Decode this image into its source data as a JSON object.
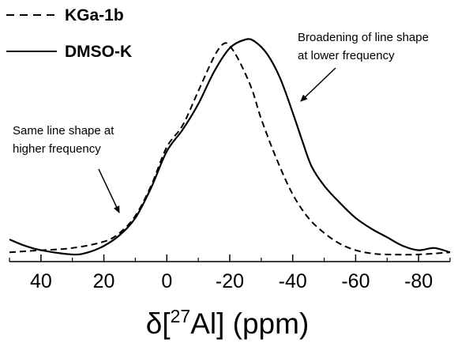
{
  "chart_data": {
    "type": "line",
    "xlabel": {
      "prefix": "δ[",
      "sup": "27",
      "element": "Al] (ppm)"
    },
    "ylabel": "",
    "xlim": [
      50,
      -90
    ],
    "x_reversed": true,
    "x_ticks": [
      40,
      20,
      0,
      -20,
      -40,
      -60,
      -80
    ],
    "x_tick_labels": [
      "40",
      "20",
      "0",
      "-20",
      "-40",
      "-60",
      "-80"
    ],
    "y_ticks_shown": false,
    "legend": {
      "position": "top-left"
    },
    "series": [
      {
        "name": "KGa-1b",
        "style": "dashed",
        "color": "#000000",
        "points": [
          [
            50,
            0.01
          ],
          [
            40,
            0.02
          ],
          [
            30,
            0.03
          ],
          [
            20,
            0.06
          ],
          [
            15,
            0.1
          ],
          [
            10,
            0.18
          ],
          [
            5,
            0.32
          ],
          [
            0,
            0.5
          ],
          [
            -5,
            0.6
          ],
          [
            -10,
            0.76
          ],
          [
            -15,
            0.92
          ],
          [
            -18,
            0.98
          ],
          [
            -20,
            0.97
          ],
          [
            -23,
            0.9
          ],
          [
            -27,
            0.77
          ],
          [
            -30,
            0.63
          ],
          [
            -35,
            0.44
          ],
          [
            -40,
            0.28
          ],
          [
            -45,
            0.17
          ],
          [
            -50,
            0.1
          ],
          [
            -55,
            0.05
          ],
          [
            -60,
            0.02
          ],
          [
            -65,
            0.005
          ],
          [
            -70,
            0.0
          ],
          [
            -80,
            0.0
          ],
          [
            -90,
            0.01
          ]
        ]
      },
      {
        "name": "DMSO-K",
        "style": "solid",
        "color": "#000000",
        "points": [
          [
            50,
            0.07
          ],
          [
            45,
            0.04
          ],
          [
            40,
            0.02
          ],
          [
            30,
            0.0
          ],
          [
            25,
            0.01
          ],
          [
            20,
            0.04
          ],
          [
            15,
            0.09
          ],
          [
            10,
            0.17
          ],
          [
            5,
            0.31
          ],
          [
            0,
            0.48
          ],
          [
            -5,
            0.58
          ],
          [
            -10,
            0.7
          ],
          [
            -15,
            0.85
          ],
          [
            -20,
            0.96
          ],
          [
            -25,
            1.0
          ],
          [
            -28,
            0.99
          ],
          [
            -32,
            0.93
          ],
          [
            -36,
            0.82
          ],
          [
            -40,
            0.66
          ],
          [
            -43,
            0.53
          ],
          [
            -46,
            0.41
          ],
          [
            -50,
            0.32
          ],
          [
            -55,
            0.24
          ],
          [
            -60,
            0.17
          ],
          [
            -65,
            0.12
          ],
          [
            -70,
            0.08
          ],
          [
            -75,
            0.04
          ],
          [
            -80,
            0.02
          ],
          [
            -85,
            0.03
          ],
          [
            -90,
            0.01
          ]
        ]
      }
    ],
    "annotations": [
      {
        "id": "left",
        "lines": [
          "Same line shape at",
          "higher frequency"
        ],
        "arrow_to": [
          15,
          0.1
        ]
      },
      {
        "id": "right",
        "lines": [
          "Broadening of line shape",
          "at lower frequency"
        ],
        "arrow_to": [
          -41,
          0.64
        ]
      }
    ]
  }
}
